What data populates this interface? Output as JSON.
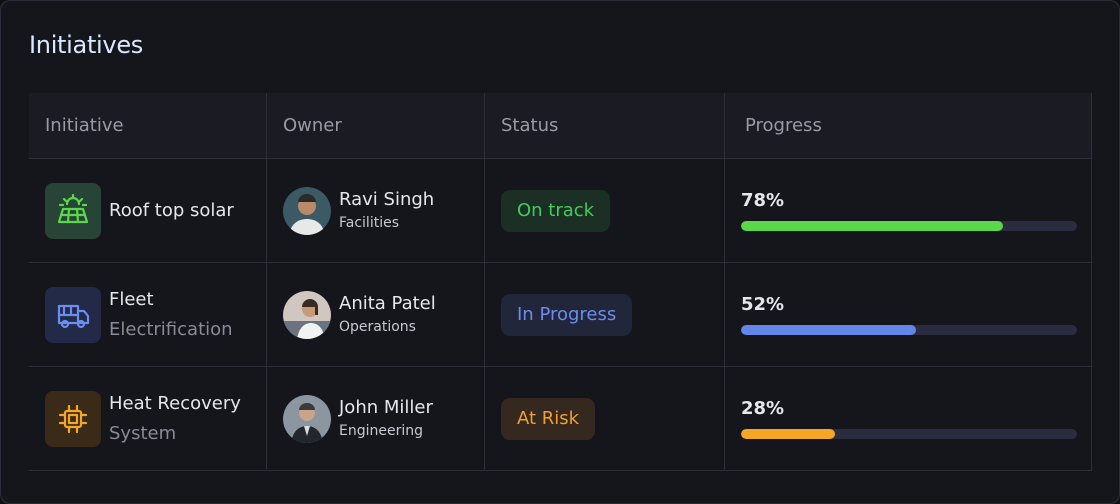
{
  "header": {
    "title": "Initiatives"
  },
  "table": {
    "columns": [
      "Initiative",
      "Owner",
      "Status",
      "Progress"
    ],
    "rows": [
      {
        "initiative": {
          "title": "Roof top solar"
        },
        "owner": {
          "name": "Ravi Singh",
          "role": "Facilities"
        },
        "status": {
          "label": "On track",
          "color": "#3ecf5a"
        },
        "progress": {
          "value": 78,
          "label": "78%",
          "color": "#5ad84a"
        }
      },
      {
        "initiative": {
          "title": "Fleet",
          "subtitle": "Electrification"
        },
        "owner": {
          "name": "Anita Patel",
          "role": "Operations"
        },
        "status": {
          "label": "In Progress",
          "color": "#6b8cf0"
        },
        "progress": {
          "value": 52,
          "label": "52%",
          "color": "#6386ea"
        }
      },
      {
        "initiative": {
          "title": "Heat Recovery",
          "subtitle": "System"
        },
        "owner": {
          "name": "John Miller",
          "role": "Engineering"
        },
        "status": {
          "label": "At Risk",
          "color": "#f0a030"
        },
        "progress": {
          "value": 28,
          "label": "28%",
          "color": "#f5a623"
        }
      }
    ]
  }
}
